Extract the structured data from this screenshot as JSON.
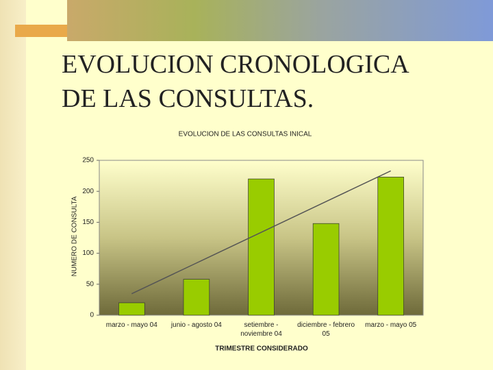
{
  "slide_title": [
    "EVOLUCION CRONOLOGICA",
    "DE LAS CONSULTAS."
  ],
  "chart_data": {
    "type": "bar",
    "title": "EVOLUCION DE LAS CONSULTAS INICAL",
    "x_label": "TRIMESTRE CONSIDERADO",
    "y_label": "NUMERO DE CONSULTA",
    "categories": [
      "marzo - mayo 04",
      "junio - agosto 04",
      "setiembre - noviembre 04",
      "diciembre - febrero 05",
      "marzo - mayo 05"
    ],
    "values": [
      20,
      58,
      220,
      148,
      223
    ],
    "color": "#99cc00",
    "trendline": {
      "values": [
        34.6,
        84.2,
        133.8,
        183.4,
        233
      ],
      "color": "#555555"
    },
    "ylim": [
      0,
      250
    ],
    "yticks": [
      0,
      50,
      100,
      150,
      200,
      250
    ]
  }
}
